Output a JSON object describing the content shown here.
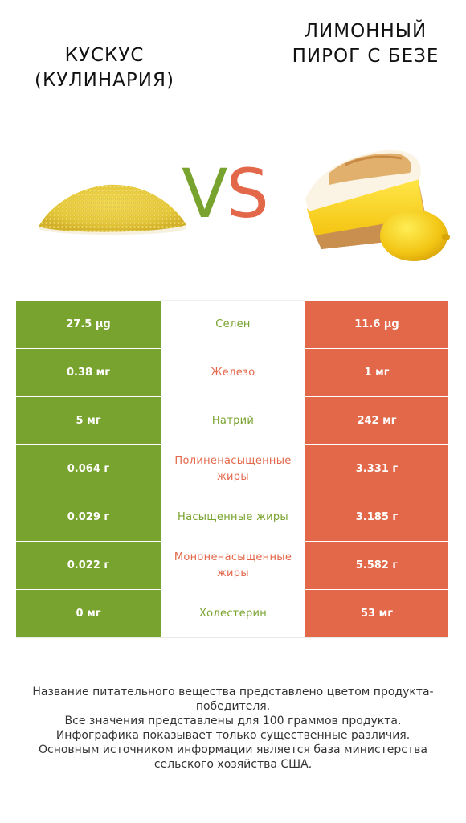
{
  "titles": {
    "left": "Кускус (кулинария)",
    "right": "Лимонный пирог с безе"
  },
  "vs": {
    "v": "V",
    "s": "S"
  },
  "colors": {
    "green": "#78a32e",
    "red": "#e3684a"
  },
  "images": {
    "left": "couscous-pile",
    "right": "lemon-meringue-pie-with-lemon"
  },
  "rows": [
    {
      "left": "27.5 µg",
      "nutrient": "Селен",
      "right": "11.6 µg",
      "winner": "green"
    },
    {
      "left": "0.38 мг",
      "nutrient": "Железо",
      "right": "1 мг",
      "winner": "red"
    },
    {
      "left": "5 мг",
      "nutrient": "Натрий",
      "right": "242 мг",
      "winner": "green"
    },
    {
      "left": "0.064 г",
      "nutrient": "Полиненасыщенные жиры",
      "right": "3.331 г",
      "winner": "red"
    },
    {
      "left": "0.029 г",
      "nutrient": "Насыщенные жиры",
      "right": "3.185 г",
      "winner": "green"
    },
    {
      "left": "0.022 г",
      "nutrient": "Мононенасыщенные жиры",
      "right": "5.582 г",
      "winner": "red"
    },
    {
      "left": "0 мг",
      "nutrient": "Холестерин",
      "right": "53 мг",
      "winner": "green"
    }
  ],
  "footer": {
    "line1": "Название питательного вещества представлено цветом продукта-победителя.",
    "line2": "Все значения представлены для 100 граммов продукта.",
    "line3": "Инфографика показывает только существенные различия.",
    "line4": "Основным источником информации является база министерства сельского хозяйства США."
  }
}
